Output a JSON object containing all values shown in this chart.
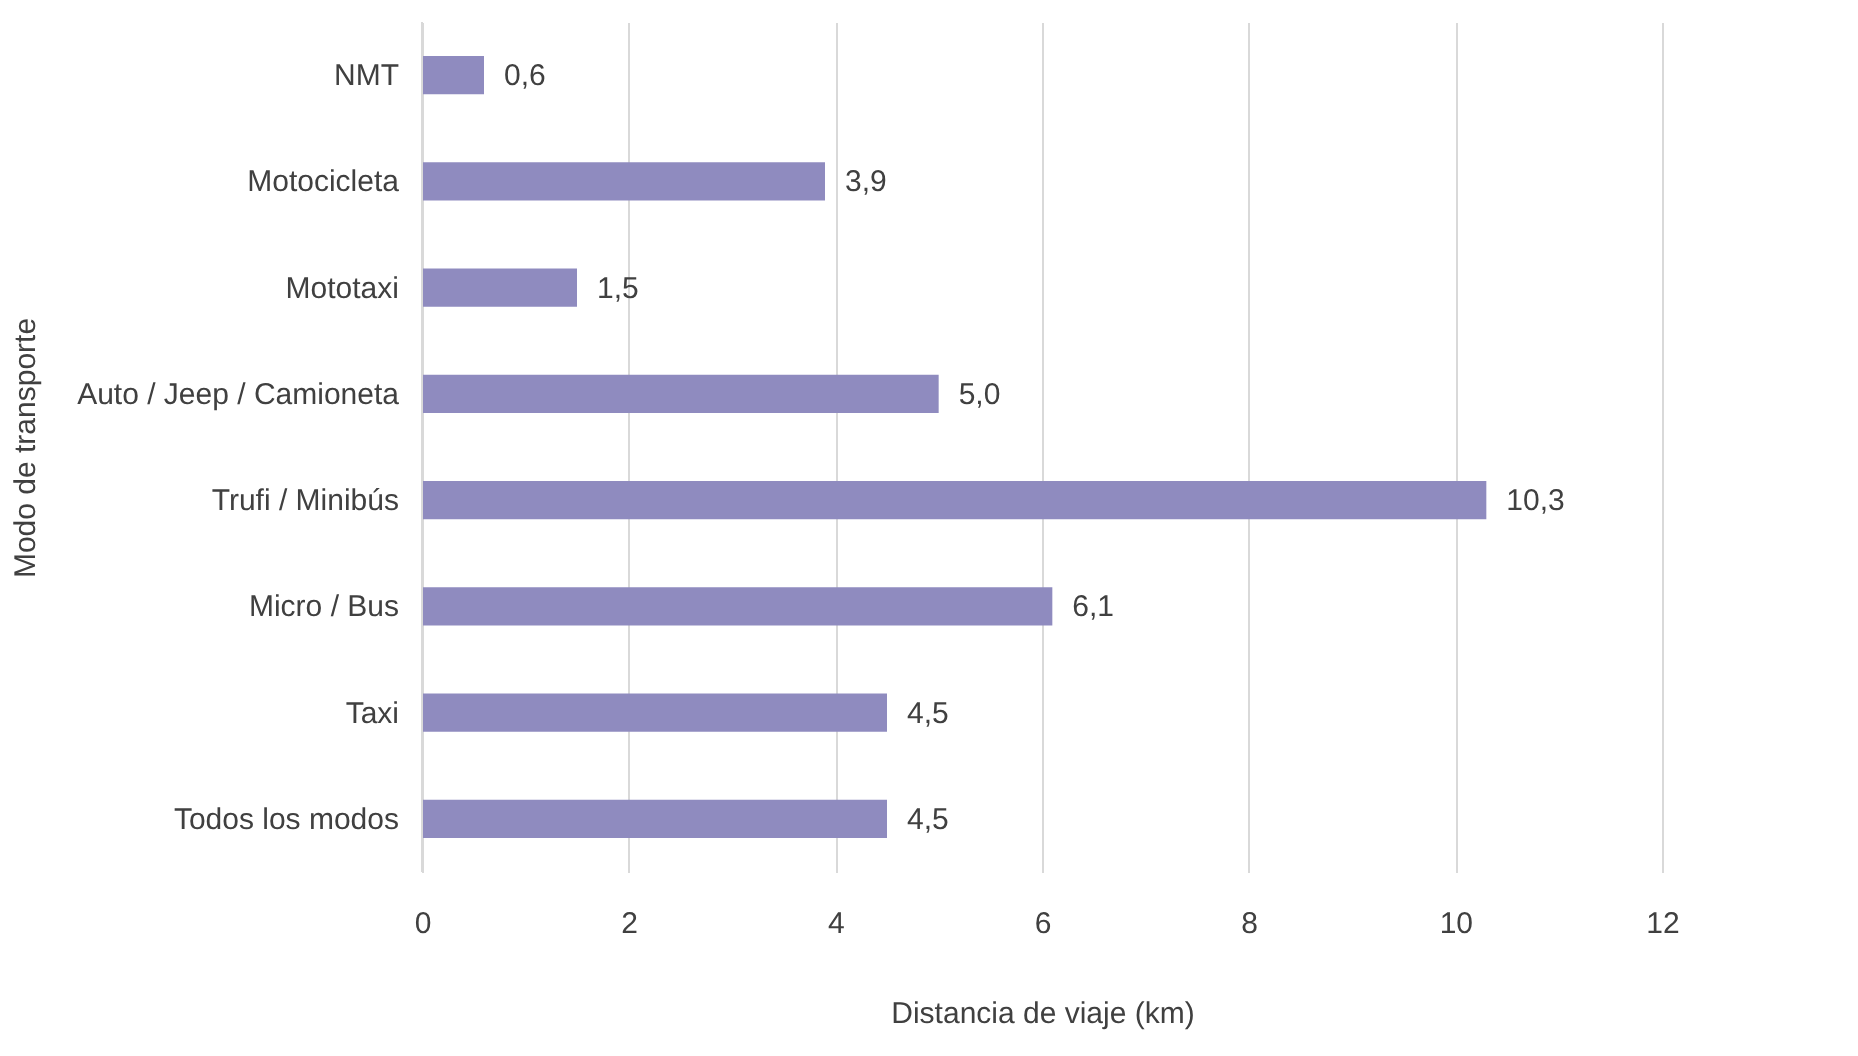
{
  "chart_data": {
    "type": "bar",
    "orientation": "horizontal",
    "xlabel": "Distancia de viaje (km)",
    "ylabel": "Modo de transporte",
    "categories": [
      "NMT",
      "Motocicleta",
      "Mototaxi",
      "Auto / Jeep / Camioneta",
      "Trufi / Minibús",
      "Micro / Bus",
      "Taxi",
      "Todos los modos"
    ],
    "values": [
      0.6,
      3.9,
      1.5,
      5.0,
      10.3,
      6.1,
      4.5,
      4.5
    ],
    "value_labels": [
      "0,6",
      "3,9",
      "1,5",
      "5,0",
      "10,3",
      "6,1",
      "4,5",
      "4,5"
    ],
    "color": "#8f8bbf",
    "xlim": [
      0,
      12
    ],
    "xticks": [
      0,
      2,
      4,
      6,
      8,
      10,
      12
    ],
    "grid": "x"
  }
}
